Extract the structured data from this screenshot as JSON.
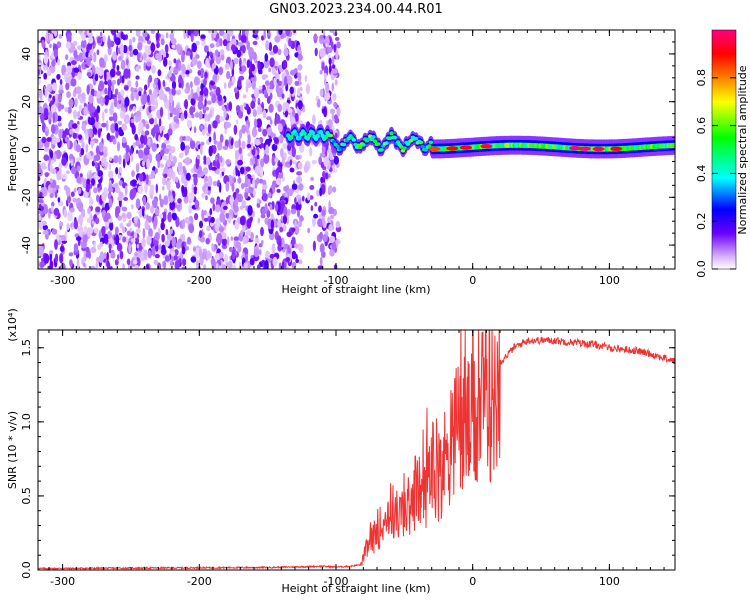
{
  "title": "GN03.2023.234.00.44.R01",
  "chart_data": [
    {
      "type": "heatmap",
      "xlabel": "Height of straight line (km)",
      "ylabel": "Frequency (Hz)",
      "xlim": [
        -318,
        148
      ],
      "ylim": [
        -50,
        50
      ],
      "x_ticks": [
        -300,
        -200,
        -100,
        0,
        100
      ],
      "y_ticks": [
        -40,
        -20,
        0,
        20,
        40
      ],
      "colorbar": {
        "label": "Normalized spectral amplitude",
        "range": [
          0,
          1
        ],
        "ticks": [
          "0.0",
          "0.2",
          "0.4",
          "0.6",
          "0.8"
        ],
        "colors": [
          "#ffffff",
          "#d9b3ff",
          "#6a00ff",
          "#0000ff",
          "#00ffff",
          "#00ff00",
          "#ffff00",
          "#ff8000",
          "#ff0000",
          "#ff0080"
        ]
      },
      "regions": [
        {
          "x_range": [
            -318,
            -100
          ],
          "freq_range": [
            -50,
            50
          ],
          "pattern": "broadband noise",
          "amplitude_range": [
            0.0,
            0.3
          ]
        },
        {
          "x_range": [
            -135,
            -105
          ],
          "freq_center": 6,
          "amplitude": 0.45
        },
        {
          "x_range": [
            -100,
            -30
          ],
          "freq_center": 3,
          "amplitude_range": [
            0.4,
            0.7
          ]
        },
        {
          "x_range": [
            -30,
            148
          ],
          "freq_center": 1,
          "amplitude_range": [
            0.5,
            1.0
          ]
        }
      ]
    },
    {
      "type": "line",
      "xlabel": "Height of straight line (km)",
      "ylabel": "SNR (10 * v/v)",
      "y_scale_label": "(x10⁴)",
      "xlim": [
        -318,
        148
      ],
      "ylim": [
        0,
        1.62
      ],
      "x_ticks": [
        -300,
        -200,
        -100,
        0,
        100
      ],
      "y_ticks": [
        "0.0",
        "0.5",
        "1.0",
        "1.5"
      ],
      "color": "#ee3333",
      "x": [
        -318,
        -250,
        -200,
        -150,
        -110,
        -100,
        -90,
        -82,
        -78,
        -72,
        -66,
        -60,
        -54,
        -48,
        -42,
        -36,
        -30,
        -24,
        -18,
        -12,
        -6,
        0,
        6,
        12,
        20,
        30,
        40,
        50,
        60,
        70,
        80,
        90,
        100,
        110,
        120,
        130,
        140,
        148
      ],
      "y": [
        0.005,
        0.008,
        0.01,
        0.012,
        0.02,
        0.015,
        0.02,
        0.03,
        0.15,
        0.25,
        0.35,
        0.45,
        0.4,
        0.45,
        0.6,
        0.55,
        0.8,
        0.7,
        0.9,
        1.05,
        1.1,
        1.08,
        1.18,
        1.3,
        1.4,
        1.5,
        1.55,
        1.55,
        1.55,
        1.54,
        1.53,
        1.52,
        1.5,
        1.49,
        1.48,
        1.46,
        1.43,
        1.41
      ]
    }
  ]
}
